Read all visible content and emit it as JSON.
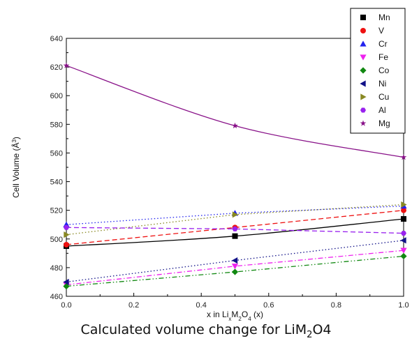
{
  "caption": {
    "main": "Calculated volume change for LiM",
    "sub": "2",
    "tail": "O4"
  },
  "chart_data": {
    "type": "line",
    "title": "",
    "xlabel": "x in LixM2O4 (x)",
    "xlabel_parts": [
      {
        "t": "x in Li"
      },
      {
        "t": "x",
        "sub": true
      },
      {
        "t": "M"
      },
      {
        "t": "2",
        "sub": true
      },
      {
        "t": "O"
      },
      {
        "t": "4",
        "sub": true
      },
      {
        "t": " (x)"
      }
    ],
    "ylabel": "Cell Volume (Å3)",
    "ylabel_parts": [
      {
        "t": "Cell Volume (Å"
      },
      {
        "t": "3",
        "sup": true
      },
      {
        "t": ")"
      }
    ],
    "xlim": [
      0,
      1.0
    ],
    "ylim": [
      460,
      640
    ],
    "xticks": [
      0,
      0.2,
      0.4,
      0.6,
      0.8,
      1.0
    ],
    "xtick_labels": [
      "0.0",
      "0.2",
      "0.4",
      "0.6",
      "0.8",
      "1.0"
    ],
    "yticks": [
      460,
      480,
      500,
      520,
      540,
      560,
      580,
      600,
      620,
      640
    ],
    "grid": false,
    "legend_position": "top-right",
    "x": [
      0,
      0.5,
      1.0
    ],
    "series": [
      {
        "name": "Mn",
        "values": [
          495,
          502,
          514
        ],
        "color": "#000000",
        "marker": "square",
        "dash": "solid",
        "smooth": true
      },
      {
        "name": "V",
        "values": [
          496,
          508,
          520
        ],
        "color": "#ee1111",
        "marker": "circle",
        "dash": "dashed"
      },
      {
        "name": "Cr",
        "values": [
          510,
          518,
          523
        ],
        "color": "#2222ee",
        "marker": "triangle-up",
        "dash": "dotted"
      },
      {
        "name": "Fe",
        "values": [
          468,
          481,
          492
        ],
        "color": "#ee22ee",
        "marker": "triangle-down",
        "dash": "dashdot"
      },
      {
        "name": "Co",
        "values": [
          467,
          477,
          488
        ],
        "color": "#118811",
        "marker": "diamond",
        "dash": "dashdotdot"
      },
      {
        "name": "Ni",
        "values": [
          470,
          485,
          499
        ],
        "color": "#111188",
        "marker": "triangle-left",
        "dash": "dotted"
      },
      {
        "name": "Cu",
        "values": [
          503,
          517,
          524
        ],
        "color": "#888822",
        "marker": "triangle-right",
        "dash": "dotted"
      },
      {
        "name": "Al",
        "values": [
          508,
          507,
          504
        ],
        "color": "#9922ee",
        "marker": "hexagon",
        "dash": "dashed"
      },
      {
        "name": "Mg",
        "values": [
          621,
          579,
          557
        ],
        "color": "#881188",
        "marker": "star",
        "dash": "solid",
        "smooth": true
      }
    ]
  }
}
